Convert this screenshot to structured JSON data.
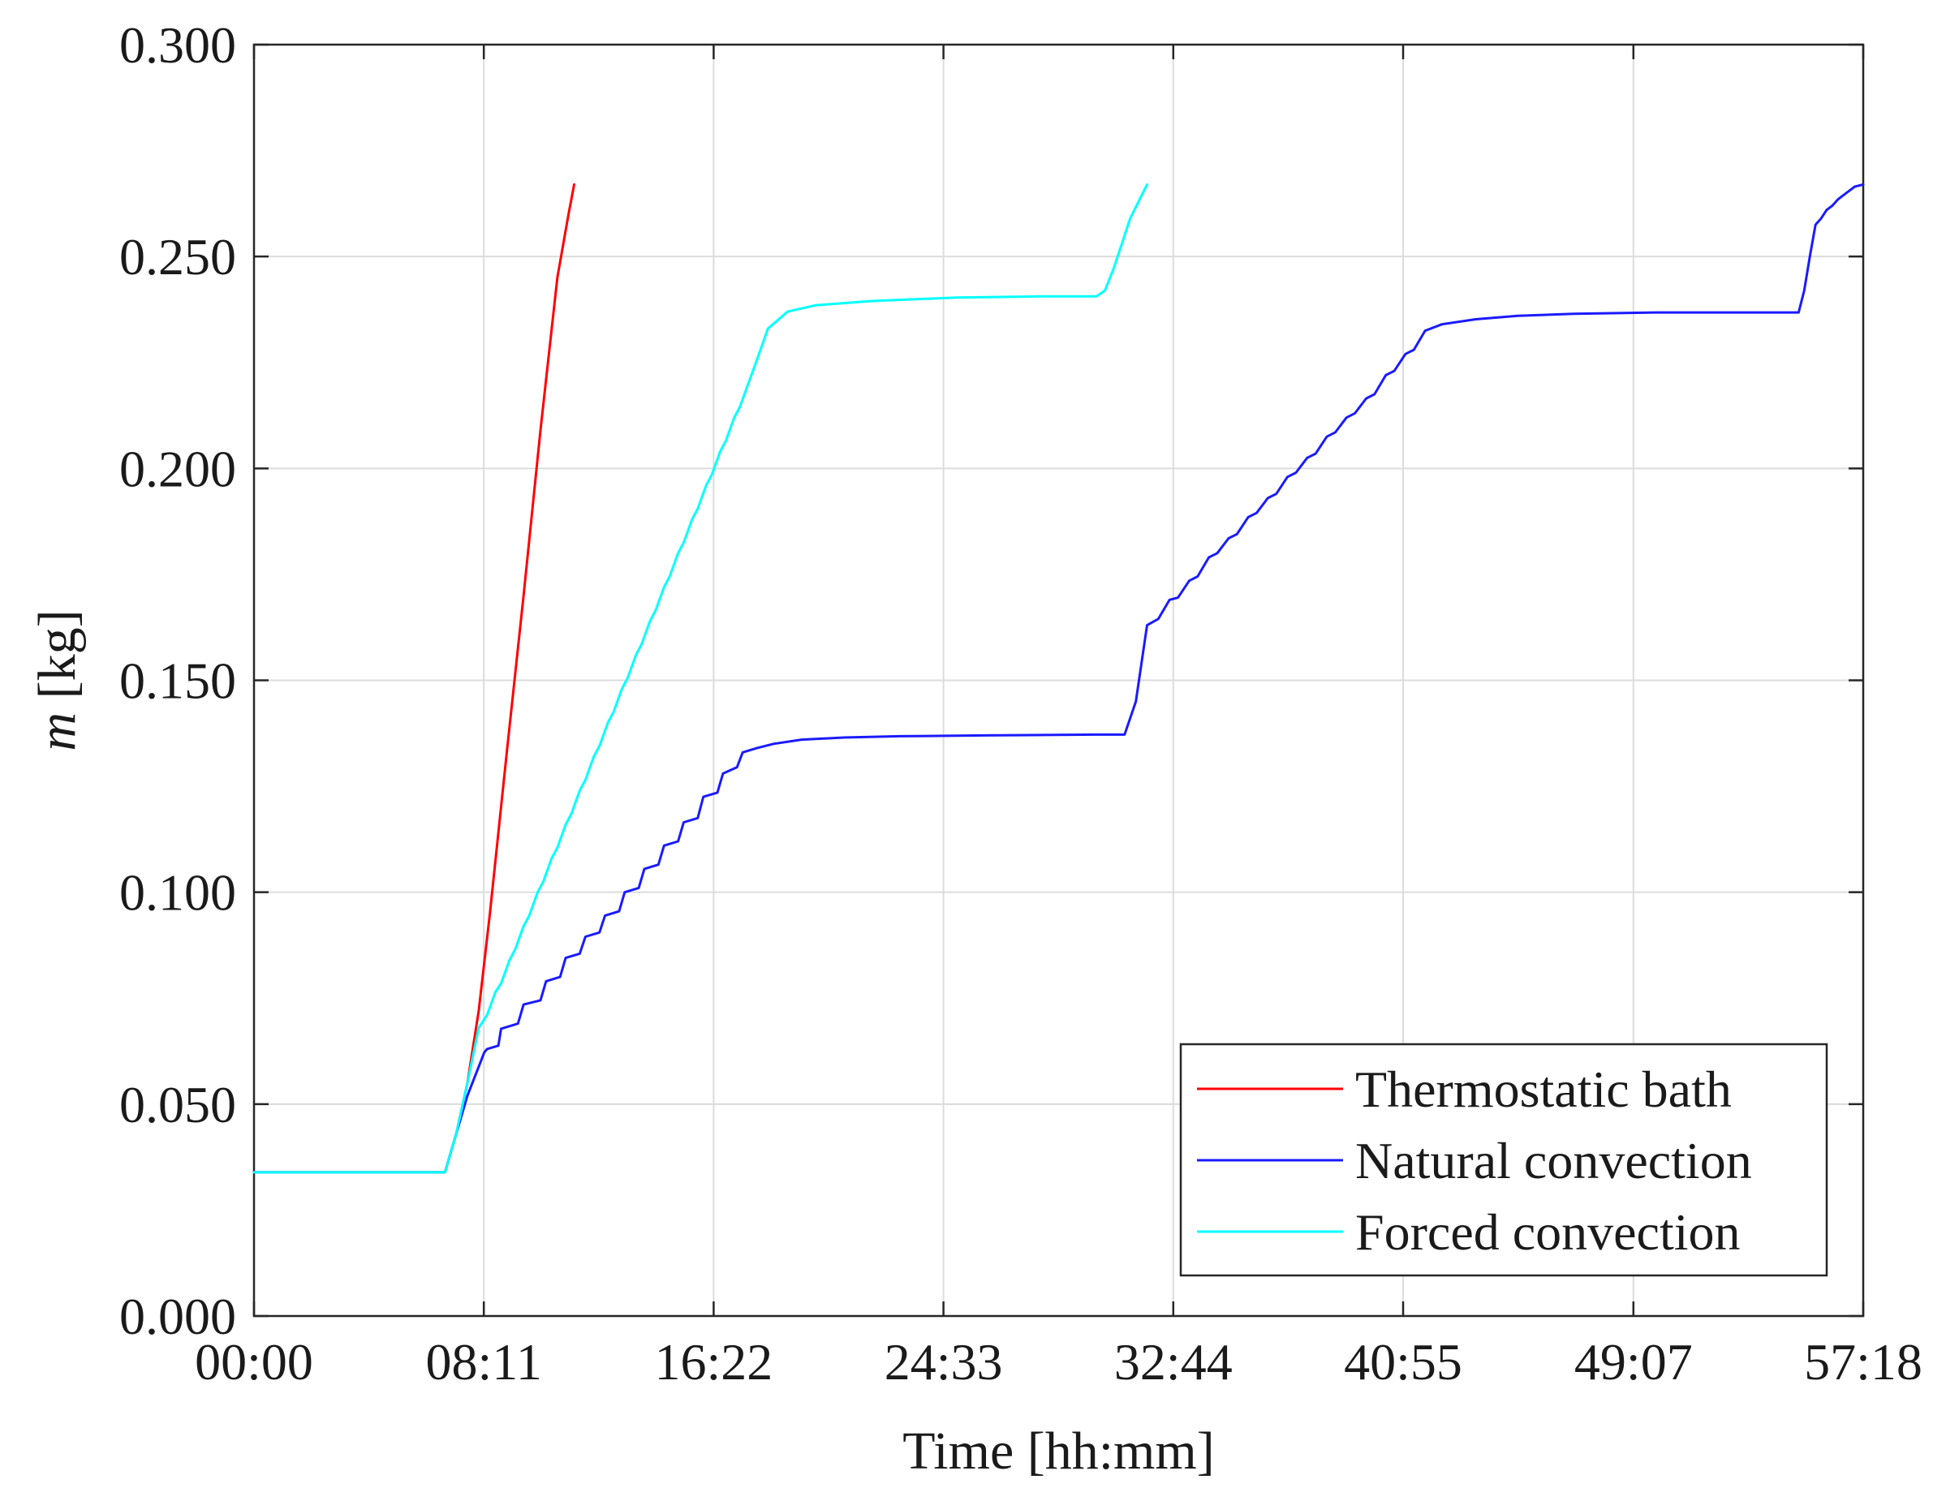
{
  "chart_data": {
    "type": "line",
    "xlabel": "Time [hh:mm]",
    "ylabel_var": "m",
    "ylabel_unit": " [kg]",
    "xlim": [
      0,
      57.3
    ],
    "ylim": [
      0,
      0.3
    ],
    "x_ticks": [
      0,
      8.183,
      16.367,
      24.55,
      32.733,
      40.917,
      49.117,
      57.3
    ],
    "x_tick_labels": [
      "00:00",
      "08:11",
      "16:22",
      "24:33",
      "32:44",
      "40:55",
      "49:07",
      "57:18"
    ],
    "y_ticks": [
      0,
      0.05,
      0.1,
      0.15,
      0.2,
      0.25,
      0.3
    ],
    "y_tick_labels": [
      "0.000",
      "0.050",
      "0.100",
      "0.150",
      "0.200",
      "0.250",
      "0.300"
    ],
    "grid": true,
    "legend_position": "bottom-right",
    "series": [
      {
        "name": "Thermostatic bath",
        "color": "#ff0000",
        "x": [
          0,
          6.8,
          7.2,
          7.6,
          8.0,
          8.4,
          9.0,
          9.6,
          10.2,
          10.8,
          11.2,
          11.4
        ],
        "y": [
          0.0339,
          0.0339,
          0.043,
          0.055,
          0.072,
          0.095,
          0.133,
          0.17,
          0.209,
          0.245,
          0.26,
          0.267
        ]
      },
      {
        "name": "Natural convection",
        "color": "#1a1aff",
        "x": [
          0,
          6.8,
          7.2,
          7.6,
          8.2,
          8.3,
          8.7,
          8.8,
          9.4,
          9.6,
          10.2,
          10.4,
          10.9,
          11.1,
          11.6,
          11.8,
          12.3,
          12.5,
          13.0,
          13.2,
          13.7,
          13.9,
          14.4,
          14.6,
          15.1,
          15.3,
          15.8,
          16.0,
          16.5,
          16.7,
          17.2,
          17.4,
          17.9,
          18.5,
          19.5,
          21.0,
          23.0,
          26.0,
          30.0,
          31.0,
          31.4,
          31.8,
          32.2,
          32.6,
          32.9,
          33.3,
          33.6,
          34.0,
          34.3,
          34.7,
          35.0,
          35.4,
          35.7,
          36.1,
          36.4,
          36.8,
          37.1,
          37.5,
          37.8,
          38.2,
          38.5,
          38.9,
          39.2,
          39.6,
          39.9,
          40.3,
          40.6,
          41.0,
          41.3,
          41.7,
          42.3,
          43.5,
          45.0,
          47.0,
          50.0,
          54.0,
          55.0,
          55.2,
          55.4,
          55.6,
          55.8,
          56.0,
          56.2,
          56.4,
          56.6,
          56.8,
          57.0,
          57.3
        ],
        "y": [
          0.0339,
          0.0339,
          0.043,
          0.052,
          0.0622,
          0.063,
          0.0638,
          0.0678,
          0.069,
          0.0735,
          0.0745,
          0.079,
          0.08,
          0.0845,
          0.0855,
          0.0895,
          0.0905,
          0.0945,
          0.0955,
          0.1,
          0.101,
          0.1055,
          0.1065,
          0.111,
          0.112,
          0.1165,
          0.1175,
          0.1225,
          0.1235,
          0.128,
          0.1295,
          0.133,
          0.134,
          0.135,
          0.136,
          0.1365,
          0.1368,
          0.137,
          0.1372,
          0.1372,
          0.145,
          0.163,
          0.1645,
          0.169,
          0.1695,
          0.1735,
          0.1745,
          0.179,
          0.18,
          0.1835,
          0.1845,
          0.1885,
          0.1895,
          0.193,
          0.194,
          0.198,
          0.199,
          0.2025,
          0.2035,
          0.2075,
          0.2085,
          0.212,
          0.213,
          0.2165,
          0.2175,
          0.222,
          0.223,
          0.227,
          0.228,
          0.2325,
          0.234,
          0.2352,
          0.236,
          0.2365,
          0.2368,
          0.2368,
          0.2368,
          0.242,
          0.25,
          0.2575,
          0.259,
          0.261,
          0.262,
          0.2635,
          0.2645,
          0.2655,
          0.2665,
          0.267
        ]
      },
      {
        "name": "Forced convection",
        "color": "#00ffff",
        "x": [
          0,
          6.8,
          7.2,
          7.6,
          8.0,
          8.3,
          8.6,
          8.8,
          9.1,
          9.3,
          9.6,
          9.8,
          10.1,
          10.3,
          10.6,
          10.8,
          11.1,
          11.3,
          11.6,
          11.8,
          12.1,
          12.3,
          12.6,
          12.8,
          13.1,
          13.3,
          13.6,
          13.8,
          14.1,
          14.3,
          14.6,
          14.8,
          15.1,
          15.3,
          15.6,
          15.8,
          16.1,
          16.3,
          16.6,
          16.8,
          17.1,
          17.3,
          17.6,
          17.9,
          18.3,
          19.0,
          20.0,
          22.0,
          25.0,
          28.0,
          30.0,
          30.3,
          30.6,
          30.9,
          31.2,
          31.5,
          31.8
        ],
        "y": [
          0.0339,
          0.0339,
          0.043,
          0.055,
          0.068,
          0.071,
          0.0765,
          0.0785,
          0.084,
          0.0865,
          0.092,
          0.0945,
          0.1,
          0.1025,
          0.108,
          0.1105,
          0.116,
          0.1185,
          0.124,
          0.1265,
          0.132,
          0.1345,
          0.14,
          0.1425,
          0.148,
          0.1505,
          0.156,
          0.1585,
          0.164,
          0.1665,
          0.172,
          0.1745,
          0.18,
          0.1825,
          0.188,
          0.1905,
          0.196,
          0.1985,
          0.204,
          0.2065,
          0.212,
          0.2145,
          0.22,
          0.2255,
          0.233,
          0.237,
          0.2385,
          0.2395,
          0.2403,
          0.2406,
          0.2406,
          0.242,
          0.247,
          0.253,
          0.259,
          0.263,
          0.267
        ]
      }
    ]
  }
}
